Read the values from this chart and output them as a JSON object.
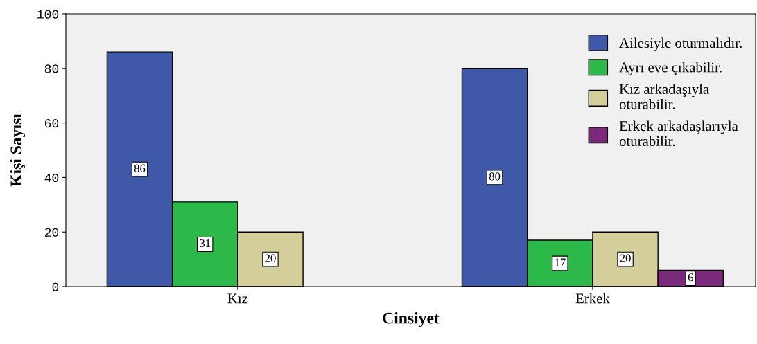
{
  "chart_data": {
    "type": "bar",
    "xlabel": "Cinsiyet",
    "ylabel": "Kişi Sayısı",
    "categories": [
      "Kız",
      "Erkek"
    ],
    "series": [
      {
        "name": "Ailesiyle oturmalıdır.",
        "color": "#3f58a8",
        "values": [
          86,
          80
        ]
      },
      {
        "name": "Ayrı eve çıkabilir.",
        "color": "#2db84a",
        "values": [
          31,
          17
        ]
      },
      {
        "name": "Kız arkadaşıyla\noturabilir.",
        "color": "#d4cf9a",
        "values": [
          20,
          20
        ]
      },
      {
        "name": "Erkek arkadaşlarıyla\noturabilir.",
        "color": "#7b2a7b",
        "values": [
          null,
          6
        ]
      }
    ],
    "ylim": [
      0,
      100
    ],
    "yticks": [
      0,
      20,
      40,
      60,
      80,
      100
    ],
    "data_labels": true,
    "grid": false,
    "legend": "top right"
  }
}
